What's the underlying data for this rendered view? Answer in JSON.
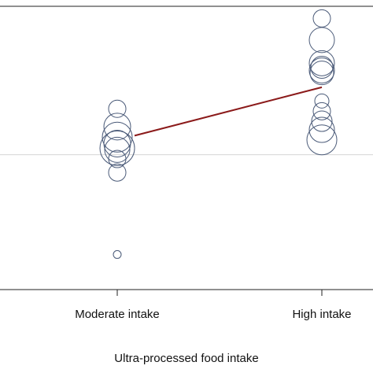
{
  "chart_data": {
    "type": "scatter",
    "title": "",
    "xlabel": "Ultra-processed food intake",
    "ylabel": "",
    "categories": [
      "Moderate intake",
      "High intake"
    ],
    "grid": false,
    "points": [
      {
        "category": "Moderate intake",
        "y": 0.67,
        "size": 11
      },
      {
        "category": "Moderate intake",
        "y": 0.604,
        "size": 17
      },
      {
        "category": "Moderate intake",
        "y": 0.565,
        "size": 19
      },
      {
        "category": "Moderate intake",
        "y": 0.541,
        "size": 17
      },
      {
        "category": "Moderate intake",
        "y": 0.524,
        "size": 22
      },
      {
        "category": "Moderate intake",
        "y": 0.518,
        "size": 16
      },
      {
        "category": "Moderate intake",
        "y": 0.484,
        "size": 11
      },
      {
        "category": "Moderate intake",
        "y": 0.434,
        "size": 11
      },
      {
        "category": "Moderate intake",
        "y": 0.13,
        "size": 5
      },
      {
        "category": "High intake",
        "y": 1.005,
        "size": 11
      },
      {
        "category": "High intake",
        "y": 0.925,
        "size": 16
      },
      {
        "category": "High intake",
        "y": 0.839,
        "size": 16
      },
      {
        "category": "High intake",
        "y": 0.824,
        "size": 14
      },
      {
        "category": "High intake",
        "y": 0.812,
        "size": 16
      },
      {
        "category": "High intake",
        "y": 0.803,
        "size": 15
      },
      {
        "category": "High intake",
        "y": 0.699,
        "size": 9
      },
      {
        "category": "High intake",
        "y": 0.661,
        "size": 11
      },
      {
        "category": "High intake",
        "y": 0.624,
        "size": 13
      },
      {
        "category": "High intake",
        "y": 0.592,
        "size": 16
      },
      {
        "category": "High intake",
        "y": 0.555,
        "size": 19
      }
    ],
    "trend_line": {
      "from": {
        "category": "Moderate intake",
        "y": 0.554
      },
      "to": {
        "category": "High intake",
        "y": 0.75
      }
    },
    "reference_line_y": 0.5,
    "ylim": [
      0,
      1.05
    ],
    "colors": {
      "marker": "#4a5a78",
      "trend": "#8b1a1a",
      "reference": "#d4d4d4",
      "axis": "#222222"
    }
  }
}
